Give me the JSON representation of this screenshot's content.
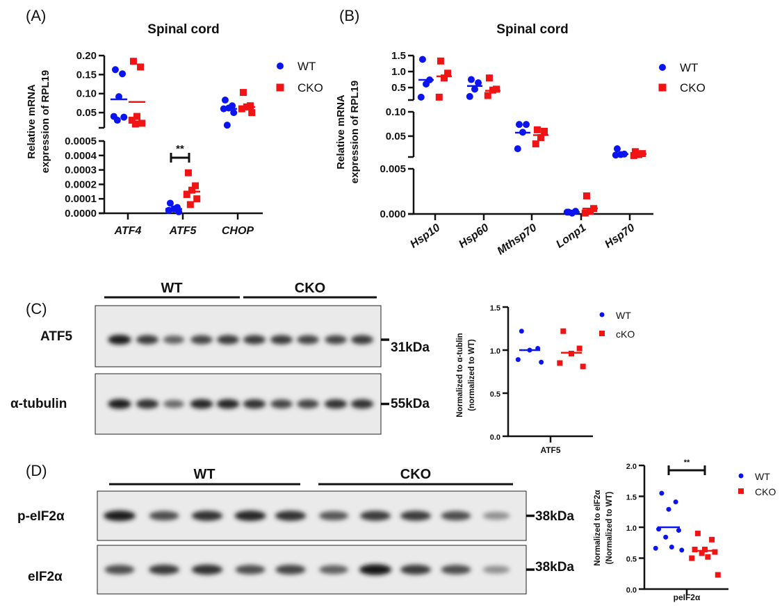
{
  "colors": {
    "wt": "#0a14f0",
    "cko": "#f01414",
    "axis": "#111111"
  },
  "panels": {
    "A": {
      "label": "(A)"
    },
    "B": {
      "label": "(B)"
    },
    "C": {
      "label": "(C)"
    },
    "D": {
      "label": "(D)"
    }
  },
  "chart_data": [
    {
      "id": "A",
      "type": "scatter",
      "title": "Spinal cord",
      "ylabel": [
        "Relative mRNA",
        "expression of RPL19"
      ],
      "categories": [
        "ATF4",
        "ATF5",
        "CHOP"
      ],
      "legend": [
        "WT",
        "CKO"
      ],
      "legend_position": "right",
      "axis_segments": [
        {
          "range": [
            0.01,
            0.2
          ],
          "ticks": [
            "0.20",
            "0.15",
            "0.10",
            "0.05"
          ]
        },
        {
          "range": [
            0,
            0.0005
          ],
          "ticks": [
            "0.0005",
            "0.0004",
            "0.0003",
            "0.0002",
            "0.0001",
            "0.0000"
          ]
        }
      ],
      "series": [
        {
          "name": "WT",
          "marker": "circle",
          "values": [
            [
              0.163,
              0.152,
              0.092,
              0.04,
              0.038,
              0.03
            ],
            [
              7e-05,
              4e-05,
              3e-05,
              2e-05,
              1e-05
            ],
            [
              0.083,
              0.068,
              0.062,
              0.06,
              0.05,
              0.017
            ]
          ],
          "means": [
            0.085,
            3e-05,
            0.06
          ]
        },
        {
          "name": "CKO",
          "marker": "square",
          "values": [
            [
              0.185,
              0.17,
              0.04,
              0.03,
              0.022,
              0.02
            ],
            [
              0.00028,
              0.00019,
              0.00016,
              0.00013,
              0.0001,
              6e-05
            ],
            [
              0.103,
              0.068,
              0.065,
              0.06,
              0.05
            ]
          ],
          "means": [
            0.078,
            0.00015,
            0.065
          ]
        }
      ],
      "annotations": [
        {
          "category": "ATF5",
          "text": "**"
        }
      ]
    },
    {
      "id": "B",
      "type": "scatter",
      "title": "Spinal cord",
      "ylabel": [
        "Relative mRNA",
        "expression of RPL19"
      ],
      "categories": [
        "Hsp10",
        "Hsp60",
        "Mthsp70",
        "Lonp1",
        "Hsp70"
      ],
      "legend": [
        "WT",
        "CKO"
      ],
      "legend_position": "right",
      "axis_segments": [
        {
          "range": [
            0.11,
            1.5
          ],
          "ticks": [
            "1.5",
            "1.0",
            "0.5"
          ]
        },
        {
          "range": [
            0.007,
            0.1
          ],
          "ticks": [
            "0.10",
            "0.05"
          ]
        },
        {
          "range": [
            0,
            0.005
          ],
          "ticks": [
            "0.005",
            "0.000"
          ]
        }
      ],
      "series": [
        {
          "name": "WT",
          "marker": "circle",
          "values": [
            [
              1.38,
              0.74,
              0.61,
              0.2
            ],
            [
              0.75,
              0.65,
              0.45,
              0.22
            ],
            [
              0.074,
              0.074,
              0.058,
              0.024
            ],
            [
              0.0002,
              0.0003,
              0.0001,
              0.0002
            ],
            [
              0.024,
              0.013,
              0.012,
              0.011
            ]
          ],
          "means": [
            0.74,
            0.55,
            0.057,
            0.0002,
            0.013
          ]
        },
        {
          "name": "CKO",
          "marker": "square",
          "values": [
            [
              1.33,
              0.95,
              0.8,
              0.2
            ],
            [
              0.8,
              0.45,
              0.42,
              0.25
            ],
            [
              0.063,
              0.06,
              0.047,
              0.034
            ],
            [
              0.002,
              0.0006,
              0.0003,
              0.0001
            ],
            [
              0.018,
              0.014,
              0.012,
              0.01
            ]
          ],
          "means": [
            0.85,
            0.4,
            0.052,
            0.0006,
            0.013
          ]
        }
      ]
    },
    {
      "id": "C",
      "type": "scatter",
      "ylabel": [
        "Normalized to α-tublin",
        "(normalized to WT)"
      ],
      "categories": [
        "ATF5"
      ],
      "ylim": [
        0,
        1.5
      ],
      "ticks": [
        "1.5",
        "1.0",
        "0.5",
        "0.0"
      ],
      "legend": [
        "WT",
        "cKO"
      ],
      "legend_position": "right",
      "series": [
        {
          "name": "WT",
          "marker": "circle",
          "values": [
            [
              1.22,
              1.02,
              1.0,
              0.89,
              0.86
            ]
          ],
          "means": [
            1.0
          ]
        },
        {
          "name": "cKO",
          "marker": "square",
          "values": [
            [
              1.22,
              1.02,
              0.96,
              0.85,
              0.81
            ]
          ],
          "means": [
            0.97
          ]
        }
      ]
    },
    {
      "id": "D",
      "type": "scatter",
      "ylabel": [
        "Normalized to eIF2α",
        "(Normalized to WT)"
      ],
      "categories": [
        "peIF2α"
      ],
      "ylim": [
        0,
        2.0
      ],
      "ticks": [
        "2.0",
        "1.5",
        "1.0",
        "0.5",
        "0.0"
      ],
      "legend": [
        "WT",
        "CKO"
      ],
      "legend_position": "right",
      "series": [
        {
          "name": "WT",
          "marker": "circle",
          "values": [
            [
              1.55,
              1.41,
              1.29,
              0.97,
              0.95,
              0.84,
              0.68,
              0.66,
              0.63
            ]
          ],
          "means": [
            1.0
          ]
        },
        {
          "name": "CKO",
          "marker": "square",
          "values": [
            [
              0.9,
              0.8,
              0.64,
              0.64,
              0.6,
              0.58,
              0.52,
              0.5,
              0.23
            ]
          ],
          "means": [
            0.62
          ]
        }
      ],
      "annotations": [
        {
          "category": "peIF2α",
          "text": "**"
        }
      ]
    }
  ],
  "blots": {
    "C": {
      "groups": [
        "WT",
        "CKO"
      ],
      "rows": [
        {
          "label": "ATF5",
          "marker": "31kDa",
          "band_intensity": [
            0.95,
            0.8,
            0.6,
            0.75,
            0.8,
            0.8,
            0.8,
            0.75,
            0.75,
            0.8
          ]
        },
        {
          "label": "α-tubulin",
          "marker": "55kDa",
          "band_intensity": [
            0.95,
            0.85,
            0.55,
            0.9,
            0.9,
            0.85,
            0.75,
            0.75,
            0.85,
            0.85
          ]
        }
      ]
    },
    "D": {
      "groups": [
        "WT",
        "CKO"
      ],
      "rows": [
        {
          "label": "p-eIF2α",
          "marker": "38kDa",
          "band_intensity": [
            0.95,
            0.7,
            0.85,
            0.9,
            0.85,
            0.65,
            0.8,
            0.8,
            0.7,
            0.35
          ]
        },
        {
          "label": "eIF2α",
          "marker": "38kDa",
          "band_intensity": [
            0.7,
            0.8,
            0.85,
            0.7,
            0.75,
            0.6,
            1.0,
            0.8,
            0.7,
            0.35
          ]
        }
      ]
    }
  }
}
